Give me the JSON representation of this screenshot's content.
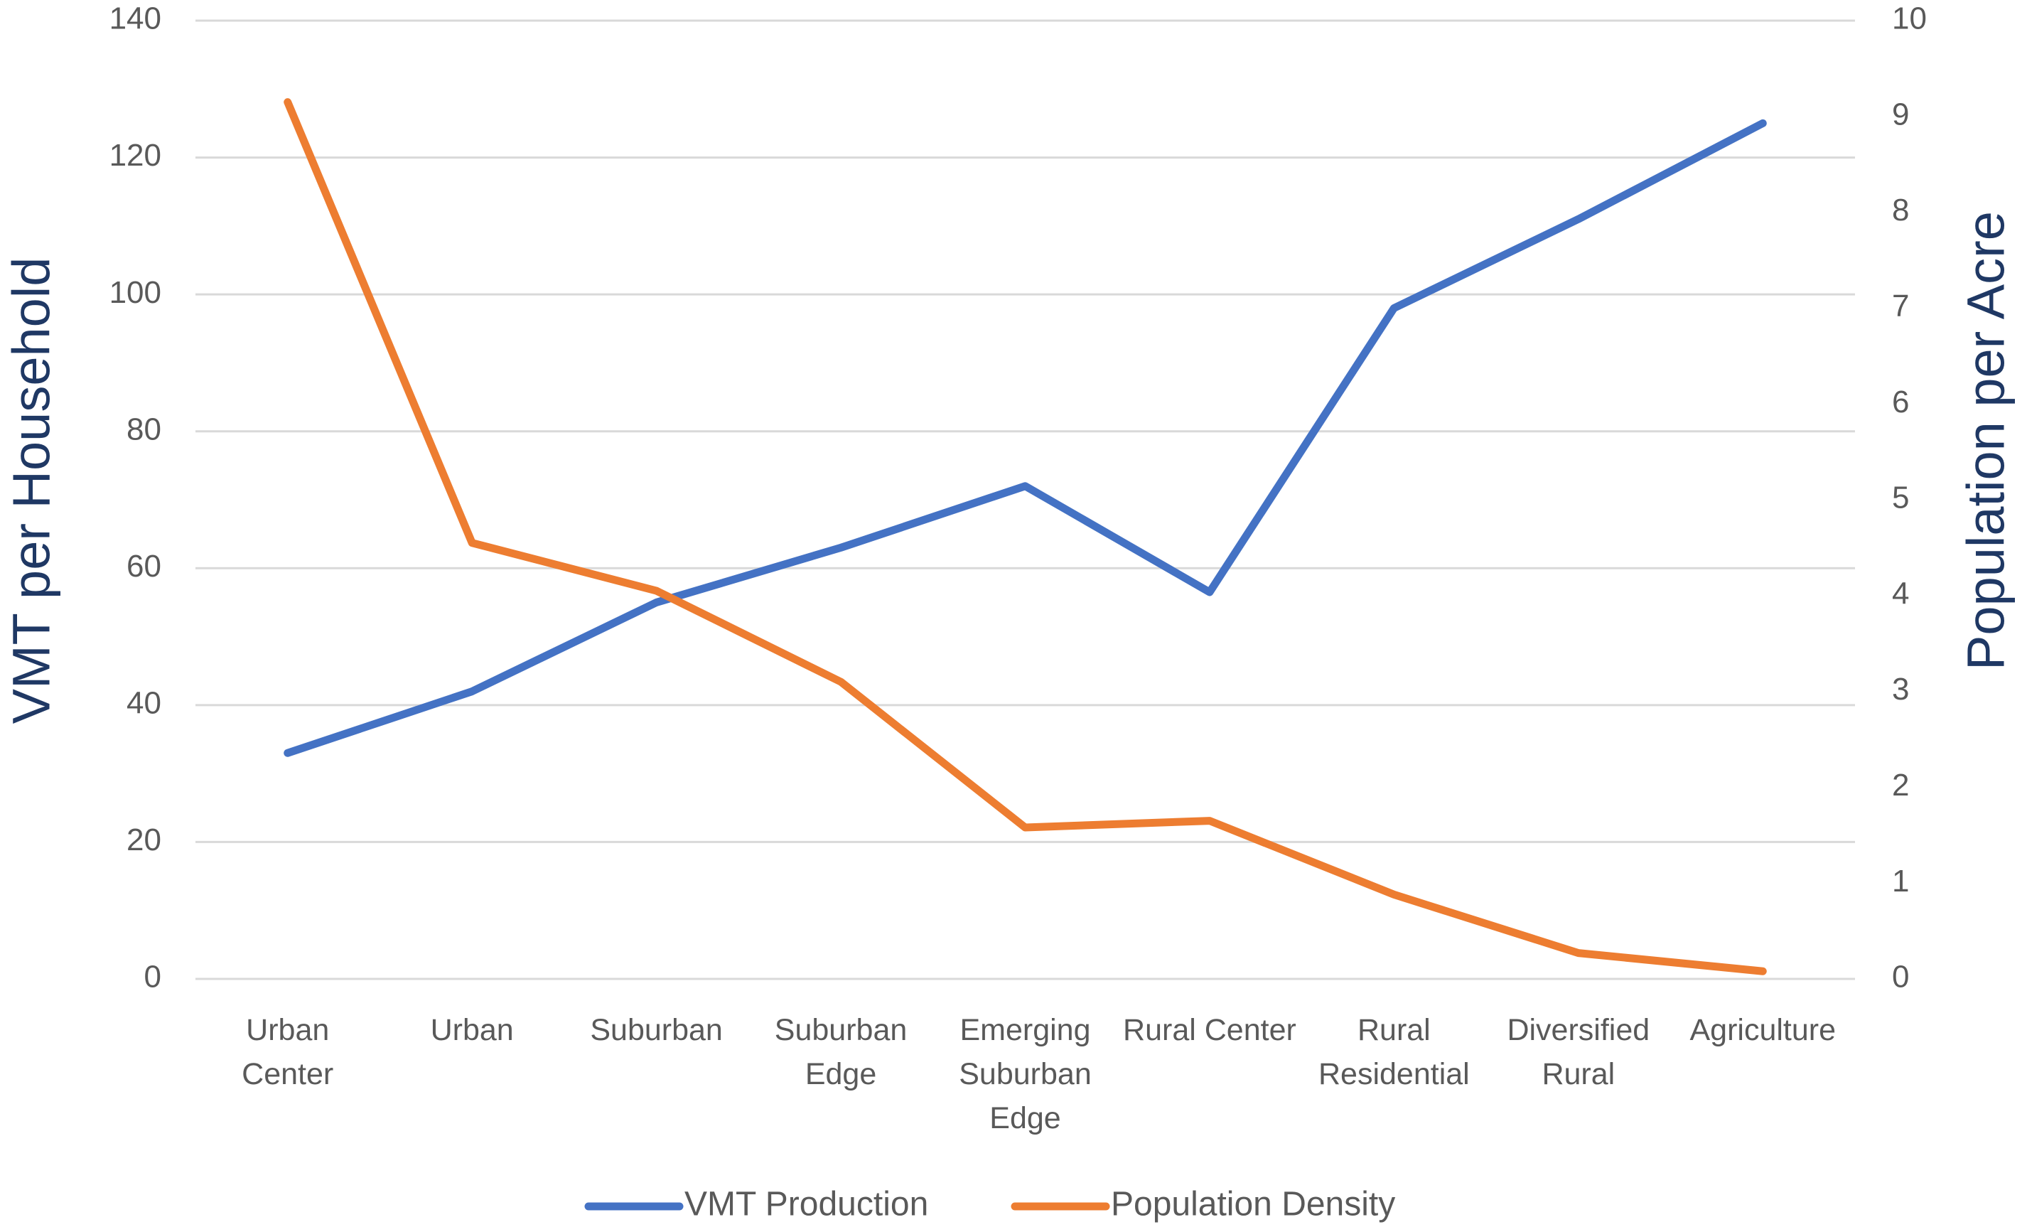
{
  "chart_data": {
    "type": "line",
    "categories": [
      "Urban\nCenter",
      "Urban",
      "Suburban",
      "Suburban\nEdge",
      "Emerging\nSuburban\nEdge",
      "Rural Center",
      "Rural\nResidential",
      "Diversified\nRural",
      "Agriculture"
    ],
    "series": [
      {
        "name": "VMT Production",
        "color": "#4472c4",
        "values": [
          33,
          42,
          55,
          63,
          72,
          56.5,
          98,
          111,
          125
        ]
      },
      {
        "name": "Population Density",
        "color": "#ed7d31",
        "axis": "y2",
        "values": [
          9.15,
          4.55,
          4.05,
          3.1,
          1.58,
          1.65,
          0.88,
          0.27,
          0.08
        ]
      }
    ],
    "ylabel": "VMT per Household",
    "y2label": "Population per Acre",
    "ylim": [
      0,
      140
    ],
    "yticks": [
      0,
      20,
      40,
      60,
      80,
      100,
      120,
      140
    ],
    "y2lim": [
      0,
      10
    ],
    "y2ticks": [
      0,
      1,
      2,
      3,
      4,
      5,
      6,
      7,
      8,
      9,
      10
    ],
    "grid": true,
    "legend": "bottom"
  }
}
